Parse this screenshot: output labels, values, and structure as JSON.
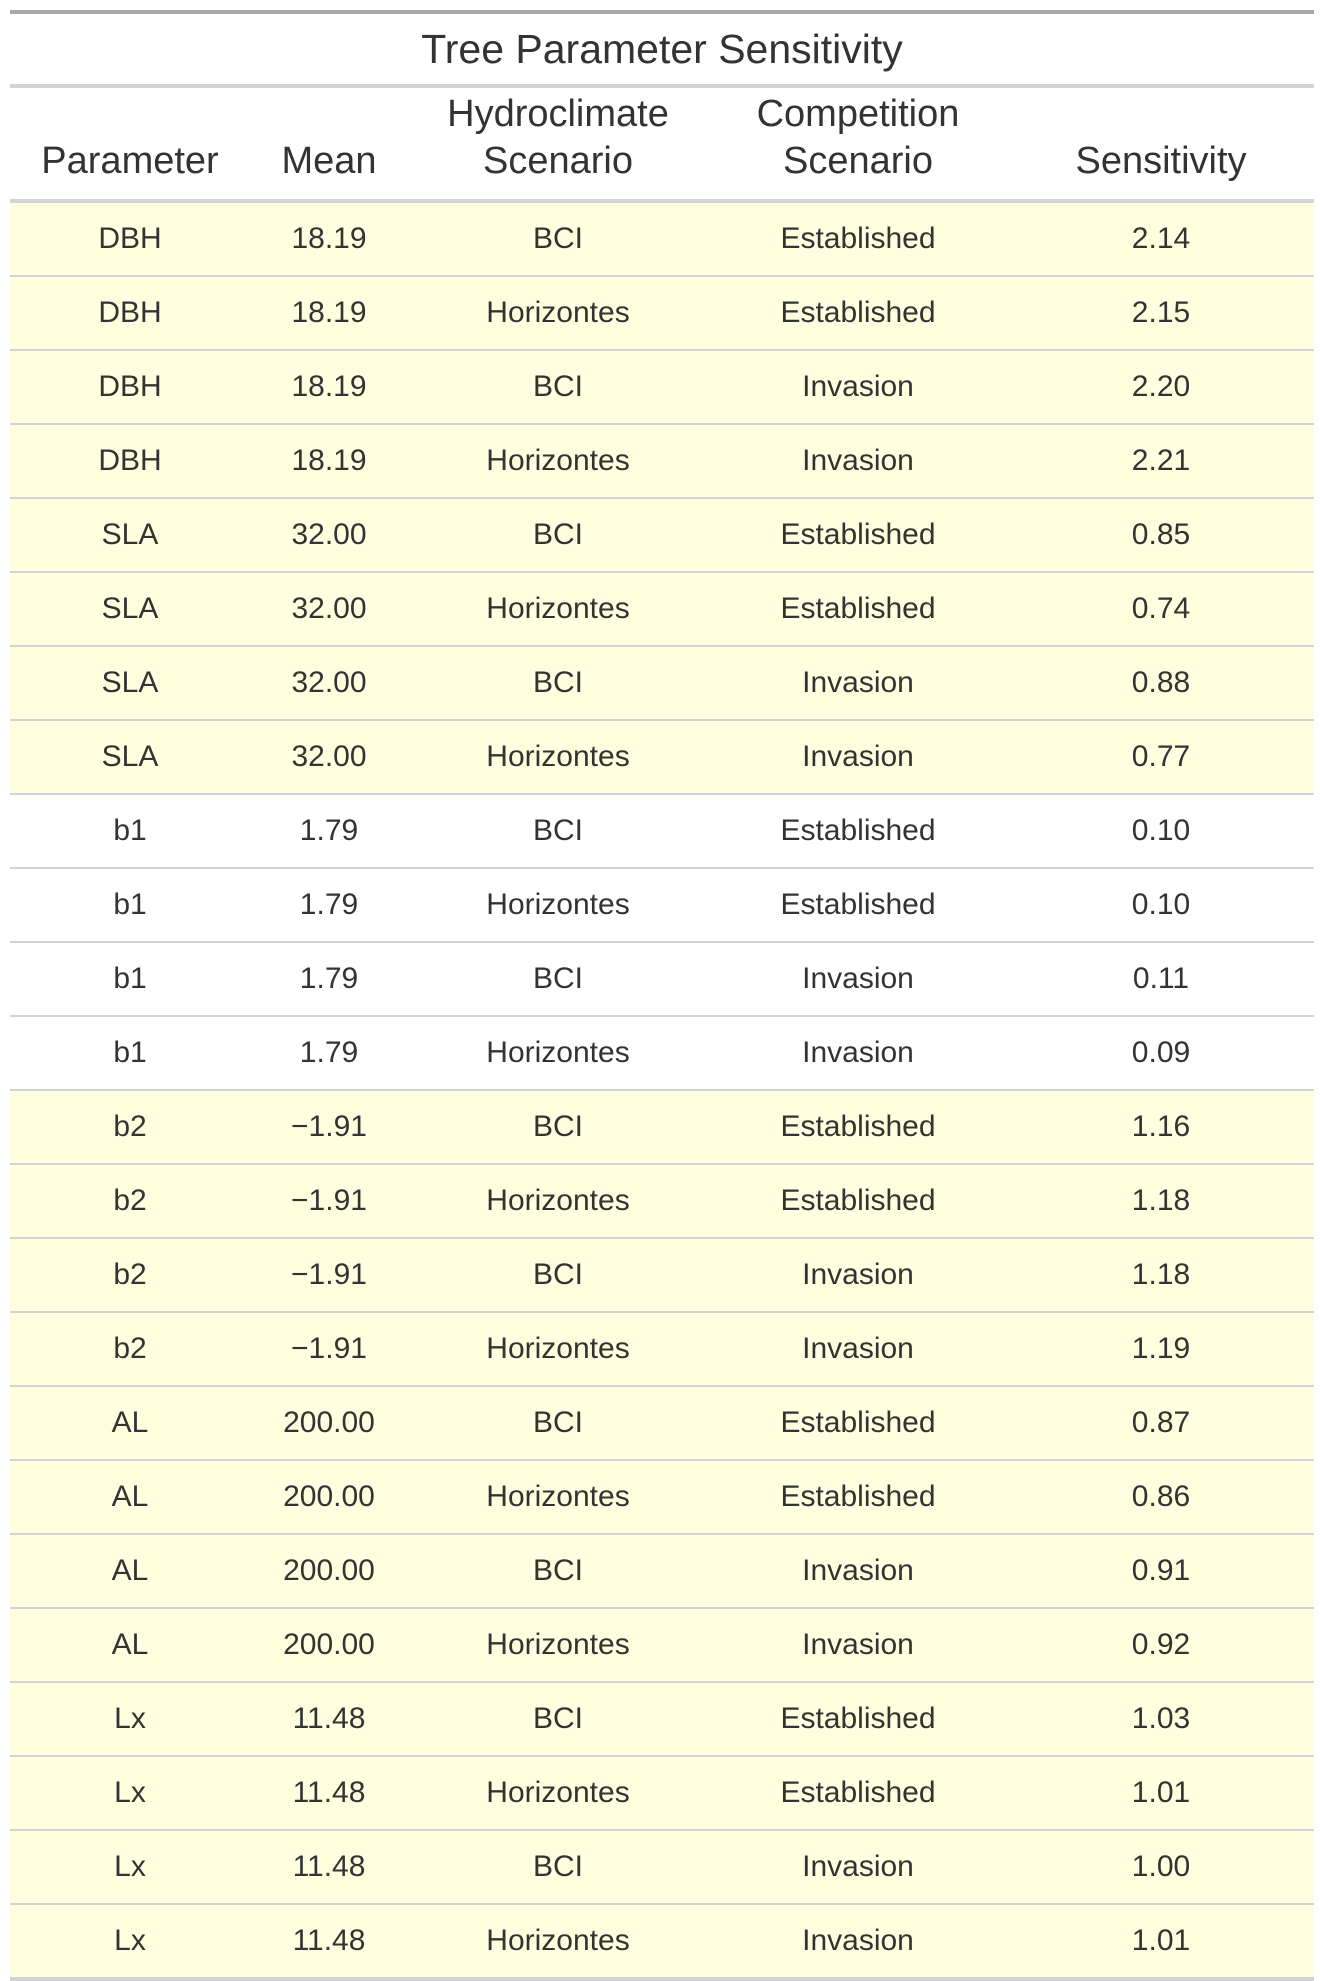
{
  "title": "Tree Parameter Sensitivity",
  "columns": [
    {
      "line1": "",
      "line2": "Parameter"
    },
    {
      "line1": "",
      "line2": "Mean"
    },
    {
      "line1": "Hydroclimate",
      "line2": "Scenario"
    },
    {
      "line1": "Competition",
      "line2": "Scenario"
    },
    {
      "line1": "",
      "line2": "Sensitivity"
    }
  ],
  "highlight_color": "#ffffe0",
  "rows": [
    {
      "parameter": "DBH",
      "mean": "18.19",
      "hydroclimate": "BCI",
      "competition": "Established",
      "sensitivity": "2.14",
      "highlight": true
    },
    {
      "parameter": "DBH",
      "mean": "18.19",
      "hydroclimate": "Horizontes",
      "competition": "Established",
      "sensitivity": "2.15",
      "highlight": true
    },
    {
      "parameter": "DBH",
      "mean": "18.19",
      "hydroclimate": "BCI",
      "competition": "Invasion",
      "sensitivity": "2.20",
      "highlight": true
    },
    {
      "parameter": "DBH",
      "mean": "18.19",
      "hydroclimate": "Horizontes",
      "competition": "Invasion",
      "sensitivity": "2.21",
      "highlight": true
    },
    {
      "parameter": "SLA",
      "mean": "32.00",
      "hydroclimate": "BCI",
      "competition": "Established",
      "sensitivity": "0.85",
      "highlight": true
    },
    {
      "parameter": "SLA",
      "mean": "32.00",
      "hydroclimate": "Horizontes",
      "competition": "Established",
      "sensitivity": "0.74",
      "highlight": true
    },
    {
      "parameter": "SLA",
      "mean": "32.00",
      "hydroclimate": "BCI",
      "competition": "Invasion",
      "sensitivity": "0.88",
      "highlight": true
    },
    {
      "parameter": "SLA",
      "mean": "32.00",
      "hydroclimate": "Horizontes",
      "competition": "Invasion",
      "sensitivity": "0.77",
      "highlight": true
    },
    {
      "parameter": "b1",
      "mean": "1.79",
      "hydroclimate": "BCI",
      "competition": "Established",
      "sensitivity": "0.10",
      "highlight": false
    },
    {
      "parameter": "b1",
      "mean": "1.79",
      "hydroclimate": "Horizontes",
      "competition": "Established",
      "sensitivity": "0.10",
      "highlight": false
    },
    {
      "parameter": "b1",
      "mean": "1.79",
      "hydroclimate": "BCI",
      "competition": "Invasion",
      "sensitivity": "0.11",
      "highlight": false
    },
    {
      "parameter": "b1",
      "mean": "1.79",
      "hydroclimate": "Horizontes",
      "competition": "Invasion",
      "sensitivity": "0.09",
      "highlight": false
    },
    {
      "parameter": "b2",
      "mean": "−1.91",
      "hydroclimate": "BCI",
      "competition": "Established",
      "sensitivity": "1.16",
      "highlight": true
    },
    {
      "parameter": "b2",
      "mean": "−1.91",
      "hydroclimate": "Horizontes",
      "competition": "Established",
      "sensitivity": "1.18",
      "highlight": true
    },
    {
      "parameter": "b2",
      "mean": "−1.91",
      "hydroclimate": "BCI",
      "competition": "Invasion",
      "sensitivity": "1.18",
      "highlight": true
    },
    {
      "parameter": "b2",
      "mean": "−1.91",
      "hydroclimate": "Horizontes",
      "competition": "Invasion",
      "sensitivity": "1.19",
      "highlight": true
    },
    {
      "parameter": "AL",
      "mean": "200.00",
      "hydroclimate": "BCI",
      "competition": "Established",
      "sensitivity": "0.87",
      "highlight": true
    },
    {
      "parameter": "AL",
      "mean": "200.00",
      "hydroclimate": "Horizontes",
      "competition": "Established",
      "sensitivity": "0.86",
      "highlight": true
    },
    {
      "parameter": "AL",
      "mean": "200.00",
      "hydroclimate": "BCI",
      "competition": "Invasion",
      "sensitivity": "0.91",
      "highlight": true
    },
    {
      "parameter": "AL",
      "mean": "200.00",
      "hydroclimate": "Horizontes",
      "competition": "Invasion",
      "sensitivity": "0.92",
      "highlight": true
    },
    {
      "parameter": "Lx",
      "mean": "11.48",
      "hydroclimate": "BCI",
      "competition": "Established",
      "sensitivity": "1.03",
      "highlight": true
    },
    {
      "parameter": "Lx",
      "mean": "11.48",
      "hydroclimate": "Horizontes",
      "competition": "Established",
      "sensitivity": "1.01",
      "highlight": true
    },
    {
      "parameter": "Lx",
      "mean": "11.48",
      "hydroclimate": "BCI",
      "competition": "Invasion",
      "sensitivity": "1.00",
      "highlight": true
    },
    {
      "parameter": "Lx",
      "mean": "11.48",
      "hydroclimate": "Horizontes",
      "competition": "Invasion",
      "sensitivity": "1.01",
      "highlight": true
    }
  ]
}
